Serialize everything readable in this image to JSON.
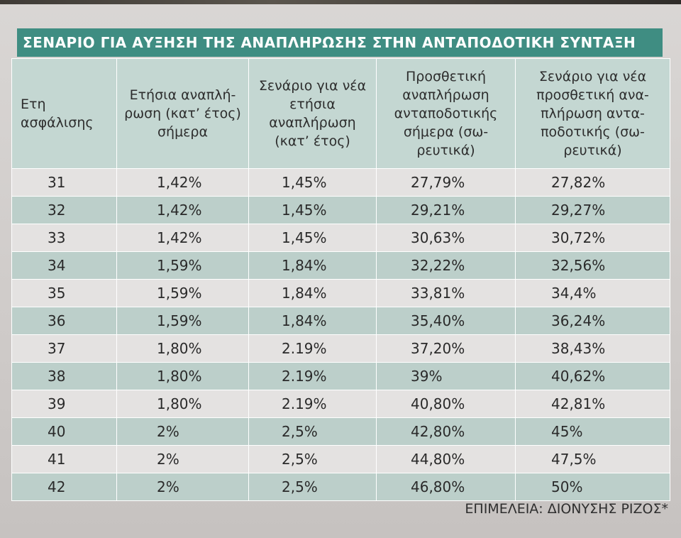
{
  "title": "ΣΕΝΑΡΙΟ ΓΙΑ ΑΥΞΗΣΗ ΤΗΣ ΑΝΑΠΛΗΡΩΣΗΣ ΣΤΗΝ ΑΝΤΑΠΟΔΟΤΙΚΗ ΣΥΝΤΑΞΗ",
  "colors": {
    "title_bar": "#3f8d82",
    "header_bg": "#c4d7d2",
    "row_light": "#e4e2e1",
    "row_teal": "#bccfca"
  },
  "table": {
    "headers": [
      "Ετη ασφάλισης",
      "Ετήσια αναπλή-ρωση (κατ’ έτος) σήμερα",
      "Σενάριο για νέα ετήσια αναπλήρωση (κατ’ έτος)",
      "Προσθετική αναπλήρωση ανταποδοτικής σήμερα (σω-ρευτικά)",
      "Σενάριο για νέα προσθετική ανα-πλήρωση αντα-ποδοτικής (σω-ρευτικά)"
    ],
    "rows": [
      [
        "31",
        "1,42%",
        "1,45%",
        "27,79%",
        "27,82%"
      ],
      [
        "32",
        "1,42%",
        "1,45%",
        "29,21%",
        "29,27%"
      ],
      [
        "33",
        "1,42%",
        "1,45%",
        "30,63%",
        "30,72%"
      ],
      [
        "34",
        "1,59%",
        "1,84%",
        "32,22%",
        "32,56%"
      ],
      [
        "35",
        "1,59%",
        "1,84%",
        "33,81%",
        "34,4%"
      ],
      [
        "36",
        "1,59%",
        "1,84%",
        "35,40%",
        "36,24%"
      ],
      [
        "37",
        "1,80%",
        "2.19%",
        "37,20%",
        "38,43%"
      ],
      [
        "38",
        "1,80%",
        "2.19%",
        "39%",
        "40,62%"
      ],
      [
        "39",
        "1,80%",
        "2.19%",
        "40,80%",
        "42,81%"
      ],
      [
        "40",
        "2%",
        "2,5%",
        "42,80%",
        "45%"
      ],
      [
        "41",
        "2%",
        "2,5%",
        "44,80%",
        "47,5%"
      ],
      [
        "42",
        "2%",
        "2,5%",
        "46,80%",
        "50%"
      ]
    ]
  },
  "credit": "ΕΠΙΜΕΛΕΙΑ: ΔΙΟΝΥΣΗΣ ΡΙΖΟΣ*"
}
